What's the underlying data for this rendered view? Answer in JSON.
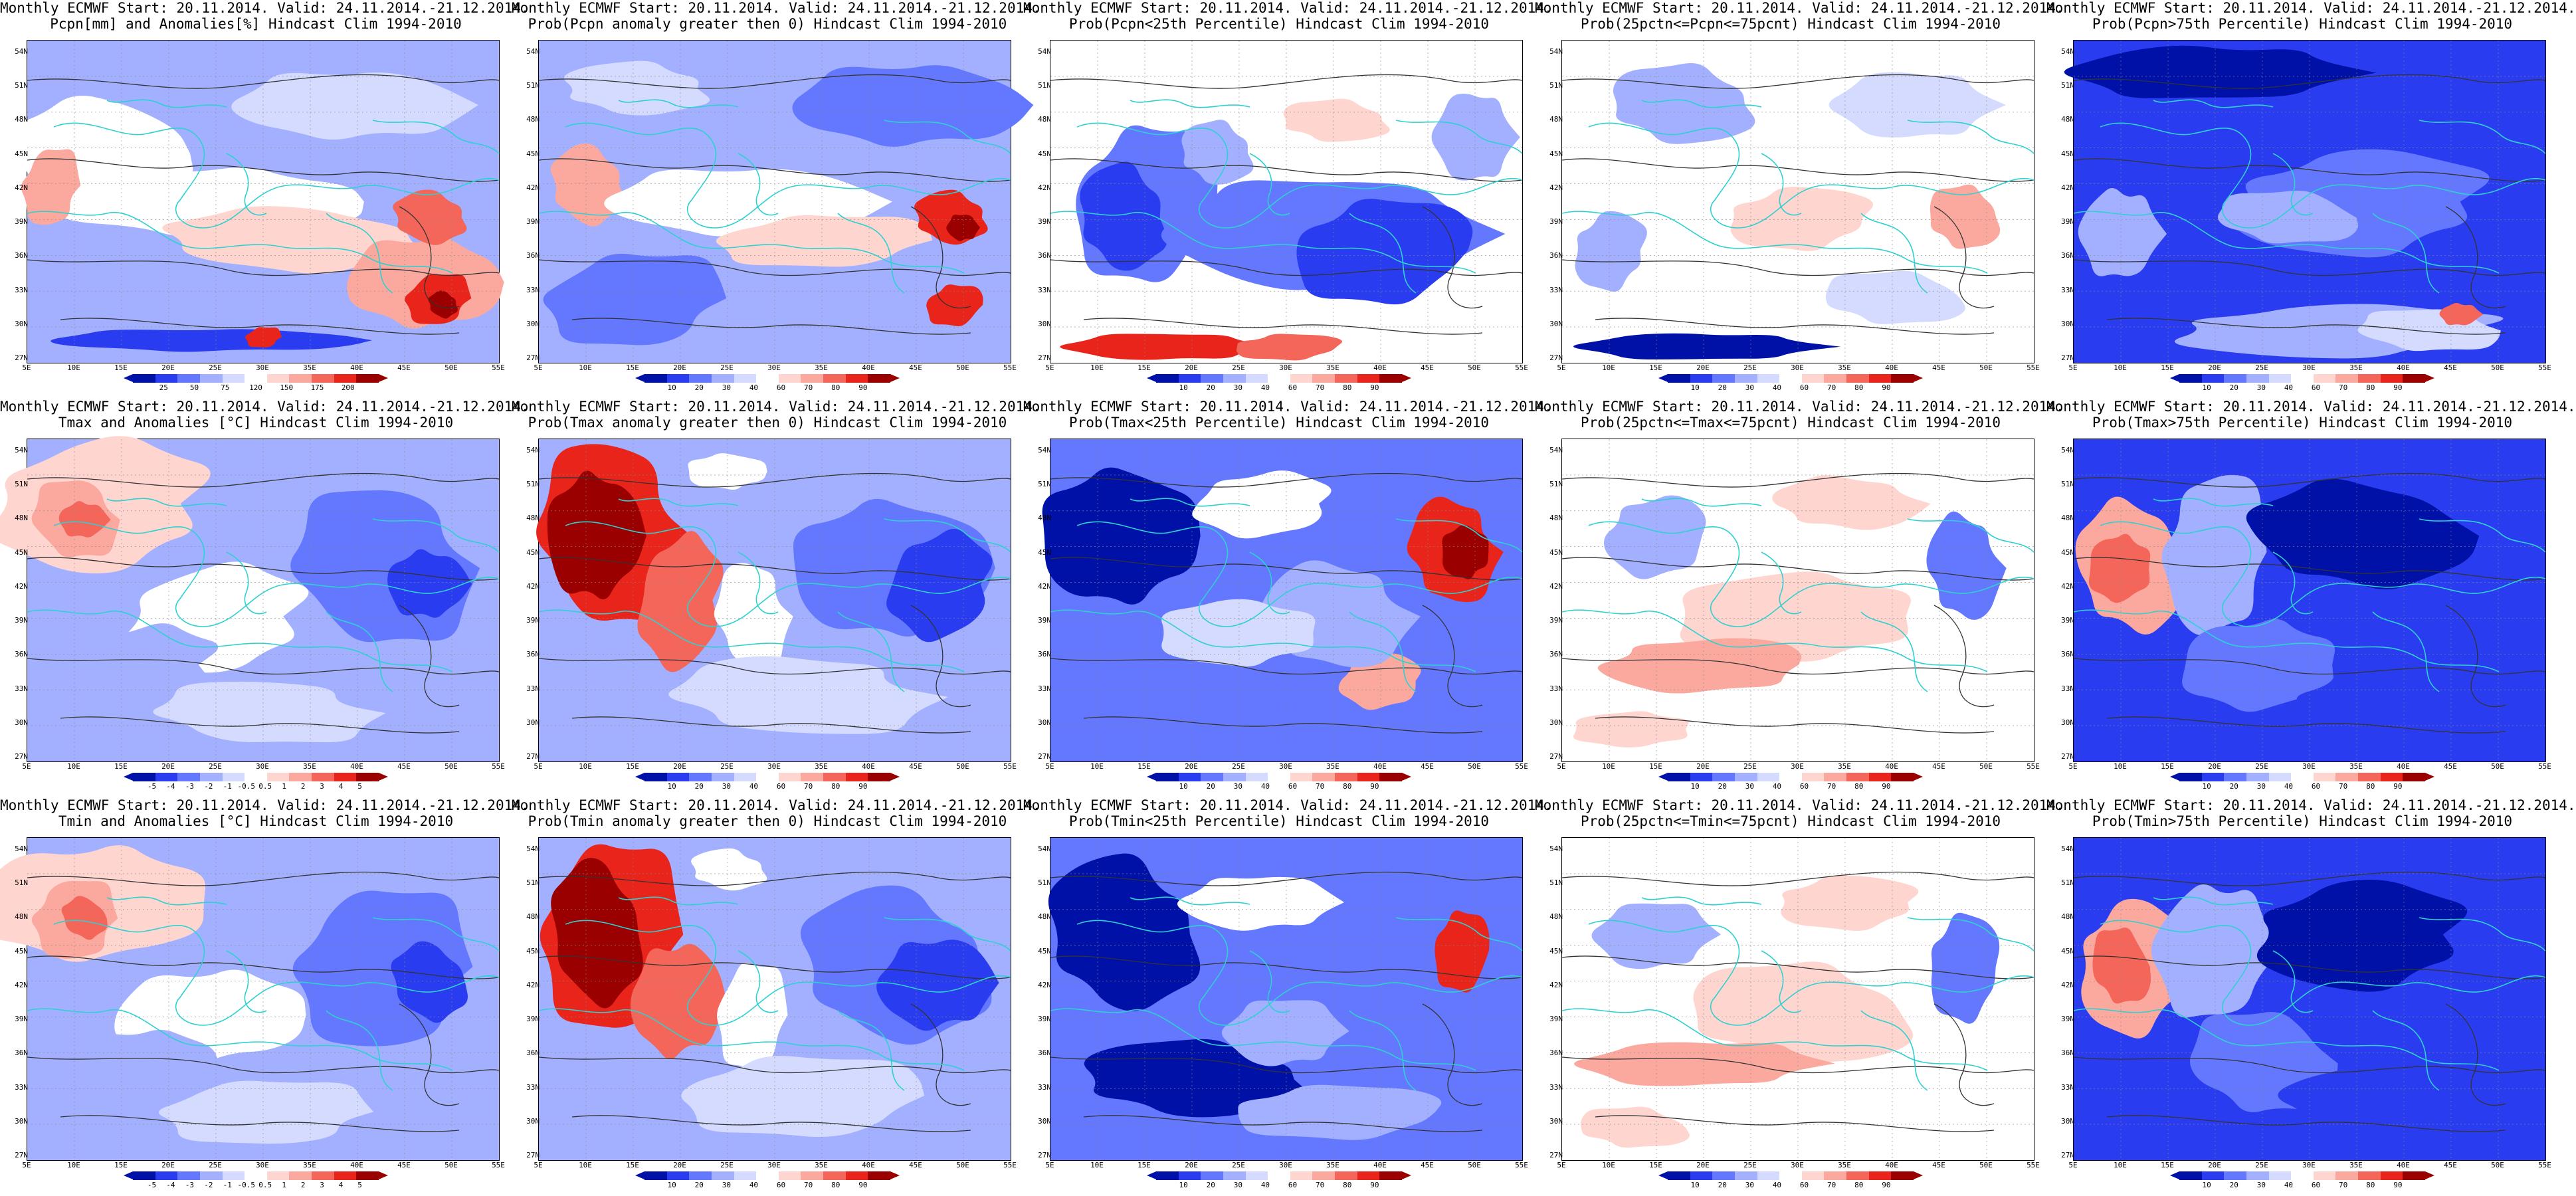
{
  "colors": {
    "deep_red": "#9a0000",
    "red": "#e8241b",
    "mid_red": "#f5665a",
    "light_red": "#fba99e",
    "pale_red": "#ffd6cf",
    "white": "#ffffff",
    "pale_blue": "#d4dbff",
    "light_blue": "#a2b0ff",
    "mid_blue": "#6478ff",
    "blue": "#2a3cf0",
    "deep_blue": "#0011a8",
    "coast": "#2fd0d0",
    "contour": "#333333"
  },
  "axes": {
    "y_labels": [
      "54N",
      "51N",
      "48N",
      "45N",
      "42N",
      "39N",
      "36N",
      "33N",
      "30N",
      "27N"
    ],
    "x_labels": [
      "5E",
      "10E",
      "15E",
      "20E",
      "25E",
      "30E",
      "35E",
      "40E",
      "45E",
      "50E",
      "55E"
    ]
  },
  "colorbars": {
    "anom_pcpn": [
      "25",
      "50",
      "75",
      "120",
      "150",
      "175",
      "200"
    ],
    "anom_temp": [
      "-5",
      "-4",
      "-3",
      "-2",
      "-1",
      "-0.5",
      "0.5",
      "1",
      "2",
      "3",
      "4",
      "5"
    ],
    "prob": [
      "10",
      "20",
      "30",
      "40",
      "60",
      "70",
      "80",
      "90"
    ]
  },
  "panels": [
    {
      "line1": "Monthly ECMWF Start: 20.11.2014. Valid: 24.11.2014.-21.12.2014.",
      "line2": "Pcpn[mm] and Anomalies[%] Hindcast Clim 1994-2010",
      "scheme": "pcpn_anom",
      "cbar": "anom_pcpn"
    },
    {
      "line1": "Monthly ECMWF Start: 20.11.2014. Valid: 24.11.2014.-21.12.2014.",
      "line2": "Prob(Pcpn anomaly greater then 0) Hindcast Clim 1994-2010",
      "scheme": "pcpn_prob_pos",
      "cbar": "prob"
    },
    {
      "line1": "Monthly ECMWF Start: 20.11.2014. Valid: 24.11.2014.-21.12.2014.",
      "line2": "Prob(Pcpn<25th Percentile) Hindcast Clim 1994-2010",
      "scheme": "pcpn_low",
      "cbar": "prob"
    },
    {
      "line1": "Monthly ECMWF Start: 20.11.2014. Valid: 24.11.2014.-21.12.2014.",
      "line2": "Prob(25pctn<=Pcpn<=75pcnt) Hindcast Clim 1994-2010",
      "scheme": "pcpn_mid",
      "cbar": "prob"
    },
    {
      "line1": "Monthly ECMWF Start: 20.11.2014. Valid: 24.11.2014.-21.12.2014.",
      "line2": "Prob(Pcpn>75th Percentile) Hindcast Clim 1994-2010",
      "scheme": "pcpn_high",
      "cbar": "prob"
    },
    {
      "line1": "Monthly ECMWF Start: 20.11.2014. Valid: 24.11.2014.-21.12.2014.",
      "line2": "Tmax and Anomalies [°C] Hindcast Clim 1994-2010",
      "scheme": "t_anom",
      "cbar": "anom_temp"
    },
    {
      "line1": "Monthly ECMWF Start: 20.11.2014. Valid: 24.11.2014.-21.12.2014.",
      "line2": "Prob(Tmax anomaly greater then 0) Hindcast Clim 1994-2010",
      "scheme": "t_prob_pos",
      "cbar": "prob"
    },
    {
      "line1": "Monthly ECMWF Start: 20.11.2014. Valid: 24.11.2014.-21.12.2014.",
      "line2": "Prob(Tmax<25th Percentile) Hindcast Clim 1994-2010",
      "scheme": "t_low",
      "cbar": "prob"
    },
    {
      "line1": "Monthly ECMWF Start: 20.11.2014. Valid: 24.11.2014.-21.12.2014.",
      "line2": "Prob(25pctn<=Tmax<=75pcnt) Hindcast Clim 1994-2010",
      "scheme": "t_mid",
      "cbar": "prob"
    },
    {
      "line1": "Monthly ECMWF Start: 20.11.2014. Valid: 24.11.2014.-21.12.2014.",
      "line2": "Prob(Tmax>75th Percentile) Hindcast Clim 1994-2010",
      "scheme": "t_high",
      "cbar": "prob"
    },
    {
      "line1": "Monthly ECMWF Start: 20.11.2014. Valid: 24.11.2014.-21.12.2014.",
      "line2": "Tmin and Anomalies [°C] Hindcast Clim 1994-2010",
      "scheme": "t_anom",
      "cbar": "anom_temp"
    },
    {
      "line1": "Monthly ECMWF Start: 20.11.2014. Valid: 24.11.2014.-21.12.2014.",
      "line2": "Prob(Tmin anomaly greater then 0) Hindcast Clim 1994-2010",
      "scheme": "t_prob_pos",
      "cbar": "prob"
    },
    {
      "line1": "Monthly ECMWF Start: 20.11.2014. Valid: 24.11.2014.-21.12.2014.",
      "line2": "Prob(Tmin<25th Percentile) Hindcast Clim 1994-2010",
      "scheme": "t_low2",
      "cbar": "prob"
    },
    {
      "line1": "Monthly ECMWF Start: 20.11.2014. Valid: 24.11.2014.-21.12.2014.",
      "line2": "Prob(25pctn<=Tmin<=75pcnt) Hindcast Clim 1994-2010",
      "scheme": "t_mid",
      "cbar": "prob"
    },
    {
      "line1": "Monthly ECMWF Start: 20.11.2014. Valid: 24.11.2014.-21.12.2014.",
      "line2": "Prob(Tmin>75th Percentile) Hindcast Clim 1994-2010",
      "scheme": "t_high",
      "cbar": "prob"
    }
  ]
}
